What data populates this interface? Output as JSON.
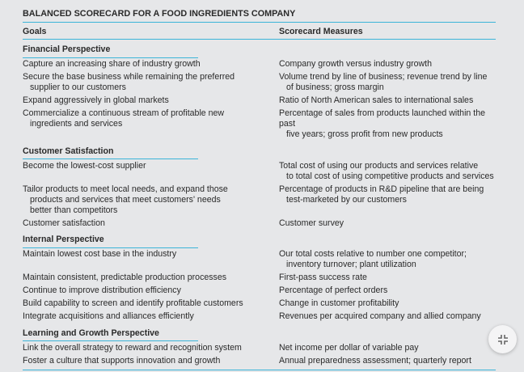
{
  "title": "BALANCED SCORECARD FOR A FOOD INGREDIENTS COMPANY",
  "headers": {
    "goals": "Goals",
    "measures": "Scorecard Measures"
  },
  "sections": [
    {
      "heading": "Financial Perspective",
      "rows": [
        {
          "goal": [
            "Capture an increasing share of industry growth"
          ],
          "measure": [
            "Company growth versus industry growth"
          ]
        },
        {
          "goal": [
            "Secure the base business while remaining the preferred",
            "supplier to our customers"
          ],
          "measure": [
            "Volume trend by line of business; revenue trend by line",
            "of business; gross margin"
          ]
        },
        {
          "goal": [
            "Expand aggressively in global markets"
          ],
          "measure": [
            "Ratio of North American sales to international sales"
          ]
        },
        {
          "goal": [
            "Commercialize a continuous stream of profitable new",
            "ingredients and services"
          ],
          "measure": [
            "Percentage of sales from products launched within the past",
            "five years; gross profit from new products"
          ]
        }
      ]
    },
    {
      "heading": "Customer Satisfaction",
      "rows": [
        {
          "goal": [
            "Become the lowest-cost supplier"
          ],
          "measure": [
            "Total cost of using our products and services relative",
            "to total cost of using competitive products and services"
          ]
        },
        {
          "goal": [
            "Tailor products to meet local needs, and expand those",
            "products and services that meet customers' needs",
            "better than competitors"
          ],
          "measure": [
            "Percentage of products in R&D pipeline that are being",
            "test-marketed by our customers"
          ]
        },
        {
          "goal": [
            "Customer satisfaction"
          ],
          "measure": [
            "Customer survey"
          ]
        }
      ]
    },
    {
      "heading": "Internal Perspective",
      "rows": [
        {
          "goal": [
            "Maintain lowest cost base in the industry"
          ],
          "measure": [
            "Our total costs relative to number one competitor;",
            "inventory turnover; plant utilization"
          ]
        },
        {
          "goal": [
            "Maintain consistent, predictable production processes"
          ],
          "measure": [
            "First-pass success rate"
          ]
        },
        {
          "goal": [
            "Continue to improve distribution efficiency"
          ],
          "measure": [
            "Percentage of perfect orders"
          ]
        },
        {
          "goal": [
            "Build capability to screen and identify profitable customers"
          ],
          "measure": [
            "Change in customer profitability"
          ]
        },
        {
          "goal": [
            "Integrate acquisitions and alliances efficiently"
          ],
          "measure": [
            "Revenues per acquired company and allied company"
          ]
        }
      ]
    },
    {
      "heading": "Learning and Growth Perspective",
      "rows": [
        {
          "goal": [
            "Link the overall strategy to reward and recognition system"
          ],
          "measure": [
            "Net income per dollar of variable pay"
          ]
        },
        {
          "goal": [
            "Foster a culture that supports innovation and growth"
          ],
          "measure": [
            "Annual preparedness assessment; quarterly report"
          ]
        }
      ]
    }
  ],
  "fab": {
    "icon": "exit-fullscreen-icon"
  },
  "colors": {
    "rule": "#3bb4d8",
    "background": "#e6e7e9"
  }
}
